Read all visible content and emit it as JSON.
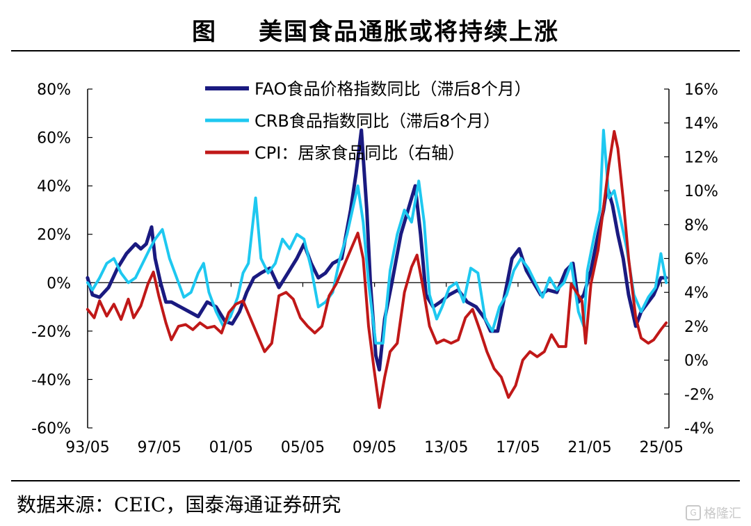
{
  "title": {
    "figure_label": "图",
    "text": "美国食品通胀或将持续上涨"
  },
  "source": "数据来源：CEIC，国泰海通证券研究",
  "watermark": "格隆汇",
  "colors": {
    "fao": "#1a1a80",
    "crb": "#1ec8f0",
    "cpi": "#c01818",
    "axis": "#000000"
  },
  "chart_data": {
    "type": "line",
    "x_ticks": [
      "93/05",
      "97/05",
      "01/05",
      "05/05",
      "09/05",
      "13/05",
      "17/05",
      "21/05",
      "25/05"
    ],
    "x_range": [
      1993.333,
      2025.75
    ],
    "y_left_ticks": [
      "80%",
      "60%",
      "40%",
      "20%",
      "0%",
      "-20%",
      "-40%",
      "-60%"
    ],
    "y_left_range": [
      -60,
      80
    ],
    "y_right_ticks": [
      "16%",
      "14%",
      "12%",
      "10%",
      "8%",
      "6%",
      "4%",
      "2%",
      "0%",
      "-2%",
      "-4%"
    ],
    "y_right_range": [
      -4,
      16
    ],
    "legend": [
      "FAO食品价格指数同比（滞后8个月）",
      "CRB食品指数同比（滞后8个月）",
      "CPI：居家食品同比（右轴）"
    ],
    "legend_position": "top-center",
    "grid": false,
    "series": [
      {
        "name": "FAO食品价格指数同比（滞后8个月）",
        "axis": "left",
        "points": [
          [
            1993.33,
            2
          ],
          [
            1993.6,
            -5
          ],
          [
            1994.0,
            -6
          ],
          [
            1994.5,
            -2
          ],
          [
            1995.0,
            6
          ],
          [
            1995.5,
            12
          ],
          [
            1996.0,
            16
          ],
          [
            1996.3,
            14
          ],
          [
            1996.6,
            16
          ],
          [
            1996.9,
            23
          ],
          [
            1997.1,
            10
          ],
          [
            1997.4,
            0
          ],
          [
            1997.7,
            -8
          ],
          [
            1998.0,
            -8
          ],
          [
            1998.5,
            -10
          ],
          [
            1999.0,
            -12
          ],
          [
            1999.5,
            -14
          ],
          [
            2000.0,
            -8
          ],
          [
            2000.5,
            -10
          ],
          [
            2001.0,
            -16
          ],
          [
            2001.4,
            -17
          ],
          [
            2001.8,
            -12
          ],
          [
            2002.2,
            -4
          ],
          [
            2002.6,
            2
          ],
          [
            2003.0,
            4
          ],
          [
            2003.5,
            6
          ],
          [
            2004.0,
            -2
          ],
          [
            2004.5,
            4
          ],
          [
            2005.0,
            10
          ],
          [
            2005.4,
            16
          ],
          [
            2005.8,
            8
          ],
          [
            2006.2,
            2
          ],
          [
            2006.6,
            4
          ],
          [
            2007.0,
            8
          ],
          [
            2007.5,
            10
          ],
          [
            2008.0,
            30
          ],
          [
            2008.3,
            45
          ],
          [
            2008.6,
            63
          ],
          [
            2008.9,
            30
          ],
          [
            2009.1,
            0
          ],
          [
            2009.4,
            -30
          ],
          [
            2009.6,
            -36
          ],
          [
            2009.9,
            -15
          ],
          [
            2010.3,
            0
          ],
          [
            2010.8,
            20
          ],
          [
            2011.2,
            30
          ],
          [
            2011.6,
            40
          ],
          [
            2011.9,
            20
          ],
          [
            2012.2,
            -5
          ],
          [
            2012.6,
            -10
          ],
          [
            2013.0,
            -8
          ],
          [
            2013.5,
            -5
          ],
          [
            2014.0,
            -3
          ],
          [
            2014.5,
            -8
          ],
          [
            2015.0,
            -10
          ],
          [
            2015.5,
            -15
          ],
          [
            2015.8,
            -20
          ],
          [
            2016.2,
            -20
          ],
          [
            2016.6,
            -5
          ],
          [
            2017.0,
            10
          ],
          [
            2017.4,
            14
          ],
          [
            2017.8,
            5
          ],
          [
            2018.2,
            0
          ],
          [
            2018.6,
            -5
          ],
          [
            2019.0,
            -3
          ],
          [
            2019.5,
            -4
          ],
          [
            2020.0,
            5
          ],
          [
            2020.4,
            8
          ],
          [
            2020.7,
            -8
          ],
          [
            2021.0,
            -5
          ],
          [
            2021.4,
            5
          ],
          [
            2021.8,
            20
          ],
          [
            2022.1,
            30
          ],
          [
            2022.3,
            40
          ],
          [
            2022.6,
            32
          ],
          [
            2022.9,
            20
          ],
          [
            2023.2,
            10
          ],
          [
            2023.5,
            -5
          ],
          [
            2023.9,
            -18
          ],
          [
            2024.2,
            -12
          ],
          [
            2024.6,
            -8
          ],
          [
            2024.9,
            -5
          ],
          [
            2025.3,
            2
          ],
          [
            2025.6,
            2
          ]
        ]
      },
      {
        "name": "CRB食品指数同比（滞后8个月）",
        "axis": "left",
        "points": [
          [
            1993.33,
            0
          ],
          [
            1993.6,
            -3
          ],
          [
            1994.0,
            2
          ],
          [
            1994.4,
            8
          ],
          [
            1994.8,
            10
          ],
          [
            1995.2,
            4
          ],
          [
            1995.6,
            0
          ],
          [
            1996.0,
            2
          ],
          [
            1996.4,
            8
          ],
          [
            1996.8,
            14
          ],
          [
            1997.1,
            18
          ],
          [
            1997.5,
            22
          ],
          [
            1997.9,
            10
          ],
          [
            1998.3,
            2
          ],
          [
            1998.7,
            -6
          ],
          [
            1999.1,
            -4
          ],
          [
            1999.5,
            4
          ],
          [
            1999.8,
            8
          ],
          [
            2000.1,
            -4
          ],
          [
            2000.5,
            -12
          ],
          [
            2000.9,
            -18
          ],
          [
            2001.3,
            -14
          ],
          [
            2001.7,
            -6
          ],
          [
            2002.0,
            4
          ],
          [
            2002.3,
            8
          ],
          [
            2002.7,
            35
          ],
          [
            2003.0,
            10
          ],
          [
            2003.4,
            4
          ],
          [
            2003.8,
            8
          ],
          [
            2004.2,
            18
          ],
          [
            2004.6,
            14
          ],
          [
            2005.0,
            20
          ],
          [
            2005.4,
            18
          ],
          [
            2005.8,
            6
          ],
          [
            2006.2,
            -10
          ],
          [
            2006.6,
            -8
          ],
          [
            2007.0,
            -4
          ],
          [
            2007.4,
            10
          ],
          [
            2007.8,
            20
          ],
          [
            2008.1,
            30
          ],
          [
            2008.4,
            40
          ],
          [
            2008.7,
            25
          ],
          [
            2009.0,
            0
          ],
          [
            2009.4,
            -25
          ],
          [
            2009.8,
            -25
          ],
          [
            2010.2,
            5
          ],
          [
            2010.6,
            20
          ],
          [
            2011.0,
            30
          ],
          [
            2011.4,
            25
          ],
          [
            2011.8,
            42
          ],
          [
            2012.1,
            25
          ],
          [
            2012.4,
            -5
          ],
          [
            2012.8,
            -15
          ],
          [
            2013.1,
            -10
          ],
          [
            2013.5,
            -2
          ],
          [
            2013.9,
            0
          ],
          [
            2014.3,
            -8
          ],
          [
            2014.7,
            6
          ],
          [
            2015.1,
            4
          ],
          [
            2015.5,
            -15
          ],
          [
            2015.9,
            -20
          ],
          [
            2016.3,
            -10
          ],
          [
            2016.7,
            -5
          ],
          [
            2017.1,
            5
          ],
          [
            2017.5,
            10
          ],
          [
            2017.9,
            6
          ],
          [
            2018.3,
            0
          ],
          [
            2018.7,
            -6
          ],
          [
            2019.1,
            2
          ],
          [
            2019.5,
            -3
          ],
          [
            2019.9,
            0
          ],
          [
            2020.3,
            8
          ],
          [
            2020.7,
            -12
          ],
          [
            2021.0,
            -18
          ],
          [
            2021.2,
            5
          ],
          [
            2021.6,
            20
          ],
          [
            2021.9,
            30
          ],
          [
            2022.1,
            63
          ],
          [
            2022.4,
            35
          ],
          [
            2022.7,
            38
          ],
          [
            2023.0,
            28
          ],
          [
            2023.4,
            14
          ],
          [
            2023.8,
            -5
          ],
          [
            2024.2,
            -12
          ],
          [
            2024.6,
            -6
          ],
          [
            2025.0,
            -2
          ],
          [
            2025.3,
            12
          ],
          [
            2025.6,
            0
          ]
        ]
      },
      {
        "name": "CPI：居家食品同比（右轴）",
        "axis": "right",
        "points": [
          [
            1993.33,
            3.0
          ],
          [
            1993.7,
            2.5
          ],
          [
            1994.0,
            3.5
          ],
          [
            1994.4,
            2.6
          ],
          [
            1994.8,
            3.3
          ],
          [
            1995.2,
            2.4
          ],
          [
            1995.6,
            3.6
          ],
          [
            1995.9,
            2.5
          ],
          [
            1996.3,
            3.2
          ],
          [
            1996.7,
            4.5
          ],
          [
            1997.0,
            5.2
          ],
          [
            1997.3,
            3.8
          ],
          [
            1997.7,
            2.2
          ],
          [
            1998.0,
            1.2
          ],
          [
            1998.4,
            2.0
          ],
          [
            1998.8,
            2.1
          ],
          [
            1999.2,
            1.8
          ],
          [
            1999.6,
            2.2
          ],
          [
            2000.0,
            1.9
          ],
          [
            2000.4,
            2.0
          ],
          [
            2000.8,
            1.6
          ],
          [
            2001.2,
            2.8
          ],
          [
            2001.6,
            3.3
          ],
          [
            2002.0,
            3.5
          ],
          [
            2002.4,
            2.5
          ],
          [
            2002.8,
            1.5
          ],
          [
            2003.2,
            0.5
          ],
          [
            2003.6,
            1.0
          ],
          [
            2004.0,
            3.8
          ],
          [
            2004.4,
            4.0
          ],
          [
            2004.8,
            3.6
          ],
          [
            2005.2,
            2.5
          ],
          [
            2005.6,
            2.0
          ],
          [
            2006.0,
            1.6
          ],
          [
            2006.4,
            2.0
          ],
          [
            2006.8,
            3.8
          ],
          [
            2007.2,
            4.5
          ],
          [
            2007.6,
            5.5
          ],
          [
            2008.0,
            6.5
          ],
          [
            2008.4,
            7.5
          ],
          [
            2008.7,
            6.0
          ],
          [
            2009.0,
            2.0
          ],
          [
            2009.3,
            -0.5
          ],
          [
            2009.6,
            -2.8
          ],
          [
            2009.9,
            -1.0
          ],
          [
            2010.2,
            0.5
          ],
          [
            2010.6,
            1.0
          ],
          [
            2011.0,
            4.0
          ],
          [
            2011.4,
            5.5
          ],
          [
            2011.7,
            6.2
          ],
          [
            2012.0,
            4.5
          ],
          [
            2012.4,
            2.0
          ],
          [
            2012.8,
            1.0
          ],
          [
            2013.2,
            1.2
          ],
          [
            2013.6,
            1.0
          ],
          [
            2014.0,
            1.2
          ],
          [
            2014.4,
            2.5
          ],
          [
            2014.8,
            3.0
          ],
          [
            2015.2,
            1.8
          ],
          [
            2015.6,
            0.5
          ],
          [
            2016.0,
            -0.5
          ],
          [
            2016.4,
            -1.0
          ],
          [
            2016.8,
            -2.2
          ],
          [
            2017.2,
            -1.5
          ],
          [
            2017.6,
            0.0
          ],
          [
            2018.0,
            0.5
          ],
          [
            2018.4,
            0.2
          ],
          [
            2018.8,
            0.5
          ],
          [
            2019.2,
            1.5
          ],
          [
            2019.6,
            0.8
          ],
          [
            2020.0,
            0.8
          ],
          [
            2020.3,
            4.5
          ],
          [
            2020.6,
            4.0
          ],
          [
            2020.9,
            3.5
          ],
          [
            2021.1,
            1.0
          ],
          [
            2021.4,
            4.5
          ],
          [
            2021.8,
            6.5
          ],
          [
            2022.1,
            9.0
          ],
          [
            2022.4,
            11.5
          ],
          [
            2022.7,
            13.5
          ],
          [
            2022.9,
            12.5
          ],
          [
            2023.2,
            9.5
          ],
          [
            2023.5,
            6.0
          ],
          [
            2023.9,
            2.5
          ],
          [
            2024.2,
            1.3
          ],
          [
            2024.6,
            1.0
          ],
          [
            2024.9,
            1.2
          ],
          [
            2025.3,
            1.8
          ],
          [
            2025.6,
            2.2
          ]
        ]
      }
    ]
  }
}
